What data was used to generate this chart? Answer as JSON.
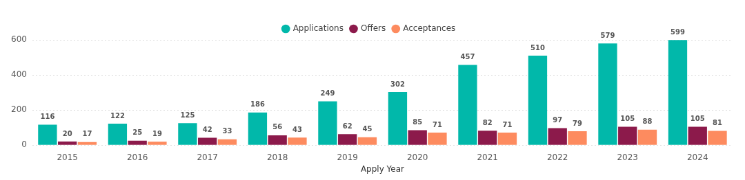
{
  "chart_data": {
    "type": "bar",
    "xlabel": "Apply Year",
    "categories": [
      "2015",
      "2016",
      "2017",
      "2018",
      "2019",
      "2020",
      "2021",
      "2022",
      "2023",
      "2024"
    ],
    "series": [
      {
        "name": "Applications",
        "color": "#01b8aa",
        "values": [
          116,
          122,
          125,
          186,
          249,
          302,
          457,
          510,
          579,
          599
        ]
      },
      {
        "name": "Offers",
        "color": "#8c1a4b",
        "values": [
          20,
          25,
          42,
          56,
          62,
          85,
          82,
          97,
          105,
          105
        ]
      },
      {
        "name": "Acceptances",
        "color": "#fd8b5f",
        "values": [
          17,
          19,
          33,
          43,
          45,
          71,
          71,
          79,
          88,
          81
        ]
      }
    ],
    "ylim": [
      0,
      600
    ],
    "yticks": [
      0,
      200,
      400,
      600
    ],
    "grid": "y",
    "legend": "top",
    "data_labels": true
  }
}
